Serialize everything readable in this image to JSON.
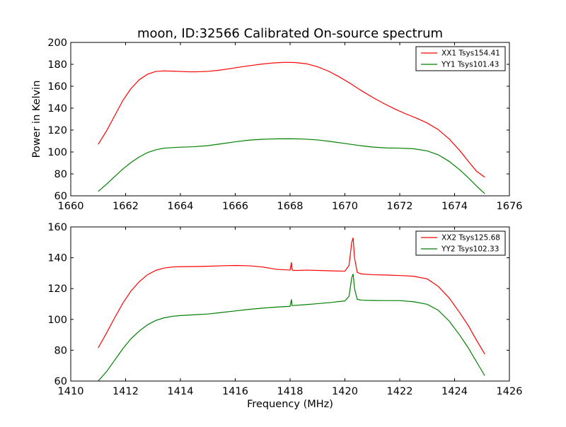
{
  "title": "moon, ID:32566 Calibrated On-source spectrum",
  "chart_data": [
    {
      "type": "line",
      "title": "moon, ID:32566 Calibrated On-source spectrum",
      "xlabel": "",
      "ylabel": "Power in Kelvin",
      "xlim": [
        1660,
        1676
      ],
      "ylim": [
        60,
        200
      ],
      "xticks": [
        1660,
        1662,
        1664,
        1666,
        1668,
        1670,
        1672,
        1674,
        1676
      ],
      "yticks": [
        60,
        80,
        100,
        120,
        140,
        160,
        180,
        200
      ],
      "grid": false,
      "legend_position": "top-right",
      "series": [
        {
          "name": "XX1 Tsys154.41",
          "color": "#ff0000",
          "x": [
            1661.0,
            1661.3,
            1661.6,
            1661.9,
            1662.2,
            1662.5,
            1662.8,
            1663.1,
            1663.4,
            1663.7,
            1664.0,
            1664.3,
            1664.6,
            1665.0,
            1665.4,
            1665.8,
            1666.2,
            1666.6,
            1667.0,
            1667.4,
            1667.8,
            1668.2,
            1668.6,
            1669.0,
            1669.4,
            1669.8,
            1670.2,
            1670.6,
            1671.0,
            1671.4,
            1671.8,
            1672.2,
            1672.6,
            1673.0,
            1673.4,
            1673.8,
            1674.2,
            1674.5,
            1674.8,
            1675.1
          ],
          "y": [
            107,
            119,
            133,
            147,
            158,
            166,
            171,
            173.5,
            174,
            173.8,
            173.5,
            173.2,
            173.2,
            173.6,
            174.6,
            176,
            177.6,
            179,
            180.3,
            181.3,
            181.8,
            181.6,
            180.5,
            177.8,
            173.8,
            168.5,
            162.5,
            156,
            150,
            144.5,
            139.5,
            135,
            131,
            126.5,
            120.5,
            112,
            101,
            91.5,
            82.5,
            77
          ]
        },
        {
          "name": "YY1 Tsys101.43",
          "color": "#008000",
          "x": [
            1661.0,
            1661.3,
            1661.6,
            1661.9,
            1662.2,
            1662.5,
            1662.8,
            1663.1,
            1663.4,
            1663.7,
            1664.0,
            1664.5,
            1665.0,
            1665.5,
            1666.0,
            1666.5,
            1667.0,
            1667.5,
            1668.0,
            1668.5,
            1669.0,
            1669.5,
            1670.0,
            1670.5,
            1671.0,
            1671.5,
            1672.0,
            1672.5,
            1673.0,
            1673.4,
            1673.8,
            1674.2,
            1674.5,
            1674.8,
            1675.1
          ],
          "y": [
            64,
            70.5,
            77.5,
            84.5,
            90.5,
            95.5,
            99.5,
            102,
            103.5,
            104,
            104.4,
            104.8,
            105.8,
            107.5,
            109.3,
            110.8,
            111.6,
            112,
            112.1,
            111.8,
            111,
            109.5,
            107.8,
            106,
            104.5,
            103.7,
            103.5,
            103,
            101,
            97.5,
            91.5,
            83.5,
            76.5,
            69,
            62
          ]
        }
      ]
    },
    {
      "type": "line",
      "title": "",
      "xlabel": "Frequency (MHz)",
      "ylabel": "",
      "xlim": [
        1410,
        1426
      ],
      "ylim": [
        60,
        160
      ],
      "xticks": [
        1410,
        1412,
        1414,
        1416,
        1418,
        1420,
        1422,
        1424,
        1426
      ],
      "yticks": [
        60,
        80,
        100,
        120,
        140,
        160
      ],
      "grid": false,
      "legend_position": "top-right",
      "series": [
        {
          "name": "XX2 Tsys125.68",
          "color": "#ff0000",
          "x": [
            1411.0,
            1411.3,
            1411.6,
            1411.9,
            1412.2,
            1412.5,
            1412.8,
            1413.1,
            1413.4,
            1413.7,
            1414.0,
            1414.5,
            1415.0,
            1415.5,
            1416.0,
            1416.5,
            1417.0,
            1417.5,
            1418.0,
            1418.05,
            1418.07,
            1418.1,
            1418.3,
            1418.6,
            1419.0,
            1419.5,
            1420.0,
            1420.15,
            1420.25,
            1420.3,
            1420.35,
            1420.45,
            1420.6,
            1421.0,
            1421.5,
            1422.0,
            1422.5,
            1423.0,
            1423.4,
            1423.8,
            1424.2,
            1424.5,
            1424.8,
            1425.1
          ],
          "y": [
            81.5,
            91,
            101,
            110.5,
            118.5,
            124.5,
            129,
            131.8,
            133.3,
            134,
            134.2,
            134.3,
            134.5,
            134.8,
            135,
            134.8,
            134,
            132.5,
            132,
            137,
            132.5,
            131.8,
            131.8,
            132,
            131.8,
            131.5,
            131.3,
            135,
            150,
            153,
            140,
            130.5,
            129.5,
            129,
            128.8,
            128.5,
            128,
            126.3,
            121.5,
            114,
            104,
            96,
            86.5,
            77.5
          ]
        },
        {
          "name": "YY2 Tsys102.33",
          "color": "#008000",
          "x": [
            1411.0,
            1411.3,
            1411.6,
            1411.9,
            1412.2,
            1412.5,
            1412.8,
            1413.1,
            1413.4,
            1413.7,
            1414.0,
            1414.5,
            1415.0,
            1415.5,
            1416.0,
            1416.5,
            1417.0,
            1417.5,
            1418.0,
            1418.05,
            1418.07,
            1418.1,
            1418.5,
            1419.0,
            1419.5,
            1420.0,
            1420.15,
            1420.25,
            1420.3,
            1420.35,
            1420.45,
            1420.6,
            1421.0,
            1421.5,
            1422.0,
            1422.5,
            1423.0,
            1423.4,
            1423.8,
            1424.2,
            1424.5,
            1424.8,
            1425.1
          ],
          "y": [
            60,
            66,
            73.5,
            81,
            87.5,
            92.5,
            96.5,
            99.3,
            101,
            102,
            102.5,
            103,
            103.5,
            104.5,
            105.5,
            106.5,
            107.3,
            108,
            108.5,
            113,
            109,
            109,
            109.5,
            110.2,
            111,
            112,
            115,
            127,
            129.5,
            120,
            113,
            112.5,
            112.3,
            112.2,
            112.2,
            111.5,
            109.8,
            106,
            99,
            89.5,
            81.5,
            72.5,
            63.5
          ]
        }
      ]
    }
  ]
}
